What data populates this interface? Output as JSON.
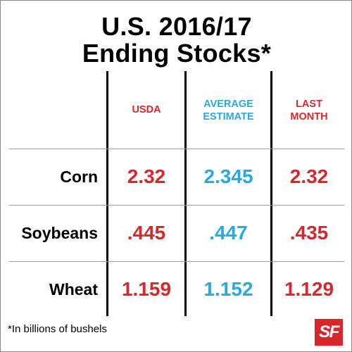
{
  "title": {
    "line1": "U.S. 2016/17",
    "line2": "Ending Stocks*"
  },
  "columns": [
    {
      "line1": "USDA",
      "line2": "",
      "color": "#d8262b"
    },
    {
      "line1": "AVERAGE",
      "line2": "ESTIMATE",
      "color": "#27a9e1"
    },
    {
      "line1": "LAST",
      "line2": "MONTH",
      "color": "#d8262b"
    }
  ],
  "rows": [
    {
      "label": "Corn",
      "values": [
        "2.32",
        "2.345",
        "2.32"
      ]
    },
    {
      "label": "Soybeans",
      "values": [
        ".445",
        ".447",
        ".435"
      ]
    },
    {
      "label": "Wheat",
      "values": [
        "1.159",
        "1.152",
        "1.129"
      ]
    }
  ],
  "footnote": "*In billions of bushels",
  "logo": {
    "text": "SF",
    "color": "#d8262b"
  }
}
